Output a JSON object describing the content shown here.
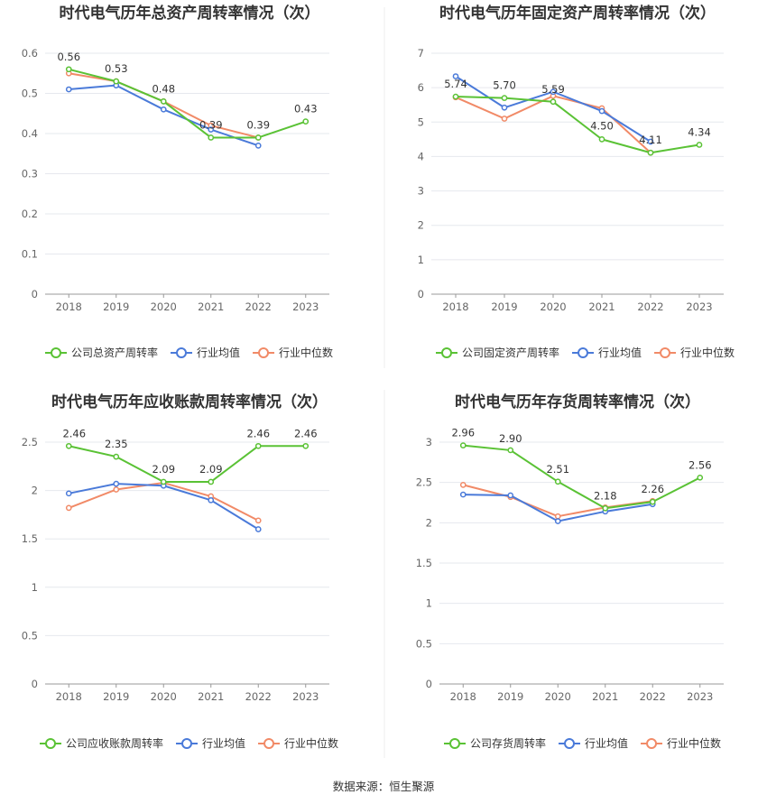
{
  "source": "数据来源：恒生聚源",
  "legend_common": {
    "avg": "行业均值",
    "median": "行业中位数"
  },
  "colors": {
    "company": "#5ac235",
    "avg": "#4a7ad9",
    "median": "#f18a67",
    "grid": "#e6e8ee",
    "axis": "#999999"
  },
  "chart_data": [
    {
      "type": "line",
      "title": "时代电气历年总资产周转率情况（次）",
      "categories": [
        "2018",
        "2019",
        "2020",
        "2021",
        "2022",
        "2023"
      ],
      "yticks": [
        "0",
        "0.1",
        "0.2",
        "0.3",
        "0.4",
        "0.5",
        "0.6"
      ],
      "ylim": [
        0,
        0.6
      ],
      "series": [
        {
          "name": "公司总资产周转率",
          "role": "company",
          "values": [
            0.56,
            0.53,
            0.48,
            0.39,
            0.39,
            0.43
          ],
          "labels": [
            "0.56",
            "0.53",
            "0.48",
            "0.39",
            "0.39",
            "0.43"
          ]
        },
        {
          "name": "行业均值",
          "role": "avg",
          "values": [
            0.51,
            0.52,
            0.46,
            0.41,
            0.37,
            null
          ]
        },
        {
          "name": "行业中位数",
          "role": "median",
          "values": [
            0.55,
            0.53,
            0.48,
            0.42,
            0.39,
            null
          ]
        }
      ]
    },
    {
      "type": "line",
      "title": "时代电气历年固定资产周转率情况（次）",
      "categories": [
        "2018",
        "2019",
        "2020",
        "2021",
        "2022",
        "2023"
      ],
      "yticks": [
        "0",
        "1",
        "2",
        "3",
        "4",
        "5",
        "6",
        "7"
      ],
      "ylim": [
        0,
        7
      ],
      "series": [
        {
          "name": "公司固定资产周转率",
          "role": "company",
          "values": [
            5.74,
            5.7,
            5.59,
            4.5,
            4.11,
            4.34
          ],
          "labels": [
            "5.74",
            "5.70",
            "5.59",
            "4.50",
            "4.11",
            "4.34"
          ]
        },
        {
          "name": "行业均值",
          "role": "avg",
          "values": [
            6.33,
            5.42,
            5.88,
            5.32,
            4.43,
            null
          ]
        },
        {
          "name": "行业中位数",
          "role": "median",
          "values": [
            5.72,
            5.1,
            5.76,
            5.4,
            4.11,
            null
          ]
        }
      ]
    },
    {
      "type": "line",
      "title": "时代电气历年应收账款周转率情况（次）",
      "categories": [
        "2018",
        "2019",
        "2020",
        "2021",
        "2022",
        "2023"
      ],
      "yticks": [
        "0",
        "0.5",
        "1",
        "1.5",
        "2",
        "2.5"
      ],
      "ylim": [
        0,
        2.5
      ],
      "series": [
        {
          "name": "公司应收账款周转率",
          "role": "company",
          "values": [
            2.46,
            2.35,
            2.09,
            2.09,
            2.46,
            2.46
          ],
          "labels": [
            "2.46",
            "2.35",
            "2.09",
            "2.09",
            "2.46",
            "2.46"
          ]
        },
        {
          "name": "行业均值",
          "role": "avg",
          "values": [
            1.97,
            2.07,
            2.05,
            1.9,
            1.6,
            null
          ]
        },
        {
          "name": "行业中位数",
          "role": "median",
          "values": [
            1.82,
            2.01,
            2.08,
            1.94,
            1.69,
            null
          ]
        }
      ]
    },
    {
      "type": "line",
      "title": "时代电气历年存货周转率情况（次）",
      "categories": [
        "2018",
        "2019",
        "2020",
        "2021",
        "2022",
        "2023"
      ],
      "yticks": [
        "0",
        "0.5",
        "1",
        "1.5",
        "2",
        "2.5",
        "3"
      ],
      "ylim": [
        0,
        3
      ],
      "series": [
        {
          "name": "公司存货周转率",
          "role": "company",
          "values": [
            2.96,
            2.9,
            2.51,
            2.18,
            2.26,
            2.56
          ],
          "labels": [
            "2.96",
            "2.90",
            "2.51",
            "2.18",
            "2.26",
            "2.56"
          ]
        },
        {
          "name": "行业均值",
          "role": "avg",
          "values": [
            2.35,
            2.34,
            2.02,
            2.14,
            2.23,
            null
          ]
        },
        {
          "name": "行业中位数",
          "role": "median",
          "values": [
            2.47,
            2.32,
            2.08,
            2.19,
            2.27,
            null
          ]
        }
      ]
    }
  ]
}
